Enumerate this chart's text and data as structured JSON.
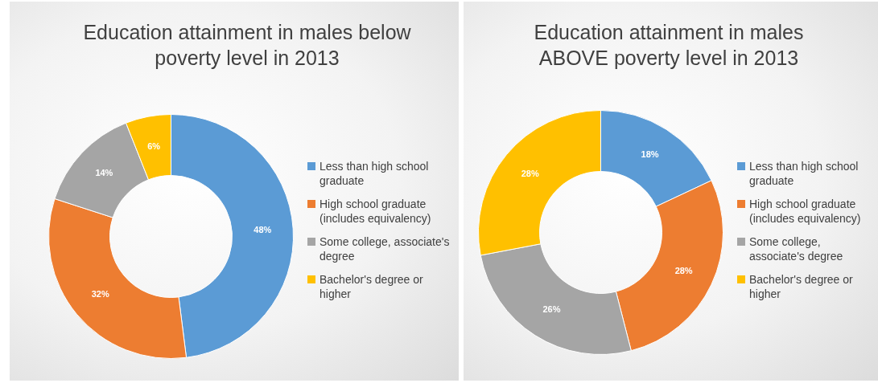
{
  "chart_data": [
    {
      "type": "donut",
      "title": "Education attainment in males below poverty level in 2013",
      "categories": [
        "Less than high school graduate",
        "High school graduate (includes equivalency)",
        "Some college, associate's degree",
        "Bachelor's degree or higher"
      ],
      "values": [
        48,
        32,
        14,
        6
      ],
      "value_labels": [
        "48%",
        "32%",
        "14%",
        "6%"
      ],
      "colors": [
        "#5b9bd5",
        "#ed7d31",
        "#a5a5a5",
        "#ffc000"
      ],
      "legend": "right"
    },
    {
      "type": "donut",
      "title": "Education attainment  in males ABOVE poverty level in 2013",
      "categories": [
        "Less than high school graduate",
        "High school graduate (includes equivalency)",
        "Some college, associate's degree",
        "Bachelor's degree or higher"
      ],
      "values": [
        18,
        28,
        26,
        28
      ],
      "value_labels": [
        "18%",
        "28%",
        "26%",
        "28%"
      ],
      "colors": [
        "#5b9bd5",
        "#ed7d31",
        "#a5a5a5",
        "#ffc000"
      ],
      "legend": "right"
    }
  ]
}
